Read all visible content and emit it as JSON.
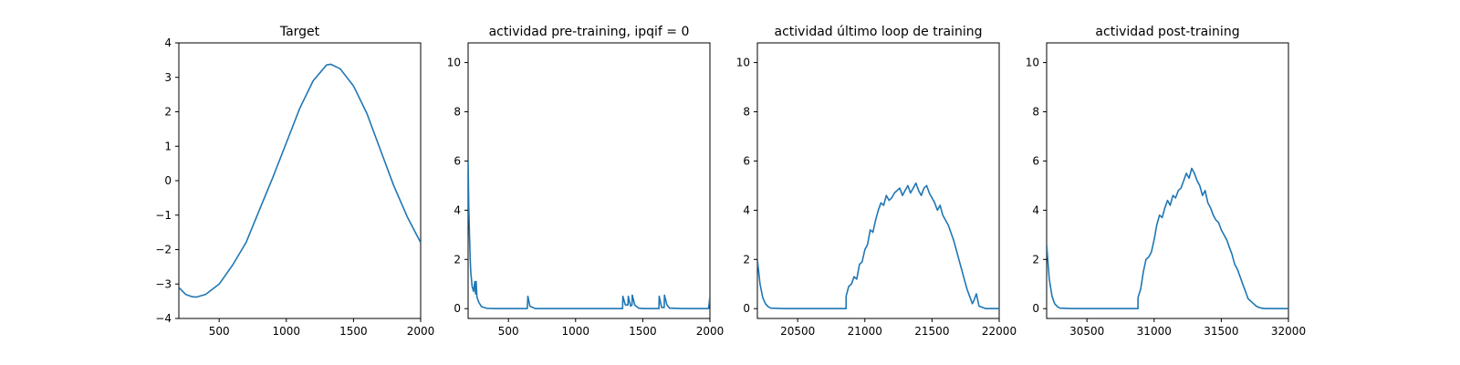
{
  "chart_data": [
    {
      "type": "line",
      "title": "Target",
      "xlim": [
        200,
        2000
      ],
      "ylim": [
        -4,
        4
      ],
      "xticks": [
        500,
        1000,
        1500,
        2000
      ],
      "yticks": [
        -4,
        -3,
        -2,
        -1,
        0,
        1,
        2,
        3,
        4
      ],
      "color": "#1f77b4",
      "x": [
        200,
        250,
        300,
        330,
        400,
        500,
        600,
        700,
        800,
        900,
        1000,
        1100,
        1200,
        1300,
        1330,
        1400,
        1500,
        1600,
        1700,
        1800,
        1900,
        2000
      ],
      "y": [
        -3.1,
        -3.3,
        -3.37,
        -3.38,
        -3.3,
        -3.0,
        -2.45,
        -1.8,
        -0.85,
        0.1,
        1.1,
        2.1,
        2.9,
        3.36,
        3.38,
        3.25,
        2.75,
        1.95,
        0.9,
        -0.15,
        -1.05,
        -1.8
      ]
    },
    {
      "type": "line",
      "title": "actividad pre-training, ipqif = 0",
      "xlim": [
        200,
        2000
      ],
      "ylim": [
        -0.4,
        10.8
      ],
      "xticks": [
        500,
        1000,
        1500,
        2000
      ],
      "yticks": [
        0,
        2,
        4,
        6,
        8,
        10
      ],
      "color": "#1f77b4",
      "x": [
        200,
        205,
        210,
        215,
        220,
        230,
        240,
        250,
        255,
        260,
        265,
        270,
        280,
        300,
        340,
        400,
        500,
        600,
        640,
        645,
        660,
        700,
        800,
        900,
        1000,
        1100,
        1200,
        1300,
        1350,
        1352,
        1370,
        1390,
        1392,
        1410,
        1420,
        1422,
        1440,
        1470,
        1500,
        1600,
        1620,
        1622,
        1640,
        1660,
        1662,
        1680,
        1700,
        1800,
        1900,
        1990,
        2000
      ],
      "y": [
        6.0,
        4.2,
        3.0,
        2.1,
        1.5,
        0.9,
        0.7,
        1.1,
        0.6,
        1.1,
        0.5,
        0.4,
        0.25,
        0.08,
        0.01,
        0.0,
        0.0,
        0.0,
        0.0,
        0.5,
        0.1,
        0.0,
        0.0,
        0.0,
        0.0,
        0.0,
        0.0,
        0.0,
        0.0,
        0.5,
        0.15,
        0.15,
        0.5,
        0.1,
        0.15,
        0.55,
        0.15,
        0.02,
        0.0,
        0.0,
        0.0,
        0.5,
        0.05,
        0.05,
        0.55,
        0.15,
        0.02,
        0.0,
        0.0,
        0.0,
        0.5
      ]
    },
    {
      "type": "line",
      "title": "actividad último loop de training",
      "xlim": [
        20200,
        22000
      ],
      "ylim": [
        -0.4,
        10.8
      ],
      "xticks": [
        20500,
        21000,
        21500,
        22000
      ],
      "yticks": [
        0,
        2,
        4,
        6,
        8,
        10
      ],
      "color": "#1f77b4",
      "x": [
        20200,
        20220,
        20240,
        20260,
        20280,
        20300,
        20400,
        20500,
        20600,
        20700,
        20800,
        20860,
        20860,
        20880,
        20900,
        20920,
        20940,
        20960,
        20980,
        21000,
        21020,
        21040,
        21060,
        21080,
        21100,
        21120,
        21140,
        21160,
        21180,
        21200,
        21220,
        21240,
        21260,
        21280,
        21300,
        21320,
        21340,
        21360,
        21380,
        21400,
        21420,
        21440,
        21460,
        21480,
        21500,
        21520,
        21540,
        21560,
        21580,
        21600,
        21620,
        21640,
        21660,
        21680,
        21700,
        21720,
        21740,
        21760,
        21780,
        21800,
        21810,
        21830,
        21850,
        21900,
        22000
      ],
      "y": [
        2.0,
        1.0,
        0.45,
        0.2,
        0.08,
        0.02,
        0.0,
        0.0,
        0.0,
        0.0,
        0.0,
        0.0,
        0.5,
        0.9,
        1.0,
        1.3,
        1.2,
        1.8,
        1.9,
        2.4,
        2.6,
        3.2,
        3.1,
        3.6,
        4.0,
        4.3,
        4.2,
        4.6,
        4.4,
        4.5,
        4.7,
        4.8,
        4.9,
        4.6,
        4.8,
        5.0,
        4.7,
        4.9,
        5.1,
        4.8,
        4.6,
        4.9,
        5.0,
        4.7,
        4.5,
        4.3,
        4.0,
        4.2,
        3.8,
        3.6,
        3.4,
        3.1,
        2.8,
        2.4,
        2.0,
        1.6,
        1.2,
        0.8,
        0.5,
        0.2,
        0.3,
        0.6,
        0.1,
        0.0,
        0.0
      ]
    },
    {
      "type": "line",
      "title": "actividad post-training",
      "xlim": [
        30200,
        32000
      ],
      "ylim": [
        -0.4,
        10.8
      ],
      "xticks": [
        30500,
        31000,
        31500,
        32000
      ],
      "yticks": [
        0,
        2,
        4,
        6,
        8,
        10
      ],
      "color": "#1f77b4",
      "x": [
        30200,
        30220,
        30240,
        30260,
        30280,
        30300,
        30400,
        30500,
        30600,
        30700,
        30800,
        30880,
        30880,
        30900,
        30920,
        30940,
        30960,
        30980,
        31000,
        31020,
        31040,
        31060,
        31080,
        31100,
        31120,
        31140,
        31160,
        31180,
        31200,
        31220,
        31240,
        31260,
        31280,
        31300,
        31320,
        31340,
        31360,
        31380,
        31400,
        31420,
        31440,
        31460,
        31480,
        31500,
        31520,
        31540,
        31560,
        31580,
        31600,
        31620,
        31640,
        31660,
        31680,
        31700,
        31720,
        31740,
        31760,
        31780,
        31800,
        31820,
        31850,
        31900,
        32000
      ],
      "y": [
        2.6,
        1.2,
        0.5,
        0.2,
        0.08,
        0.02,
        0.0,
        0.0,
        0.0,
        0.0,
        0.0,
        0.0,
        0.45,
        0.8,
        1.5,
        2.0,
        2.1,
        2.3,
        2.8,
        3.4,
        3.8,
        3.7,
        4.1,
        4.4,
        4.2,
        4.6,
        4.5,
        4.8,
        4.9,
        5.2,
        5.5,
        5.3,
        5.7,
        5.5,
        5.2,
        5.0,
        4.6,
        4.8,
        4.3,
        4.1,
        3.8,
        3.6,
        3.5,
        3.2,
        3.0,
        2.8,
        2.5,
        2.2,
        1.8,
        1.6,
        1.3,
        1.0,
        0.7,
        0.4,
        0.3,
        0.2,
        0.1,
        0.05,
        0.02,
        0.0,
        0.0,
        0.0,
        0.0
      ]
    }
  ]
}
